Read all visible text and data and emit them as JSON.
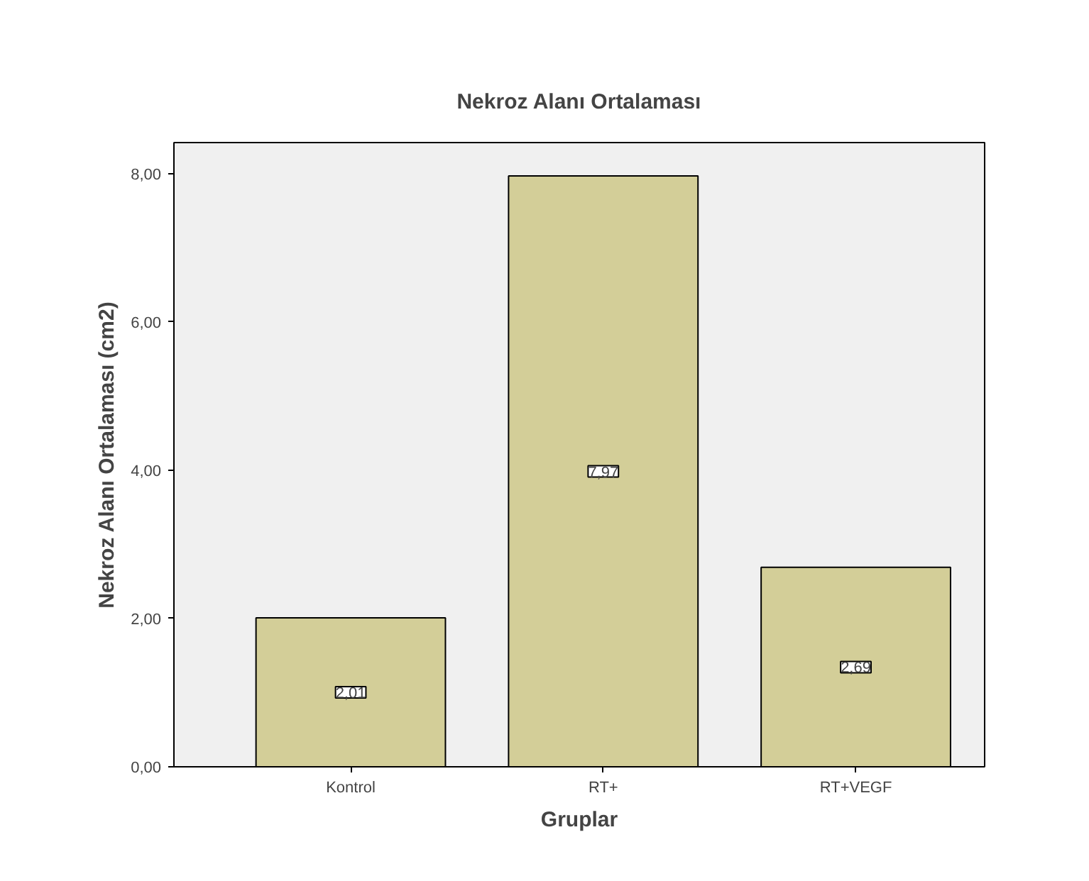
{
  "chart_data": {
    "type": "bar",
    "title": "Nekroz Alanı Ortalaması",
    "xlabel": "Gruplar",
    "ylabel": "Nekroz Alanı Ortalaması (cm2)",
    "categories": [
      "Kontrol",
      "RT+",
      "RT+VEGF"
    ],
    "values": [
      2.01,
      7.97,
      2.69
    ],
    "value_labels": [
      "2,01",
      "7,97",
      "2,69"
    ],
    "color": "#d3ce98",
    "ylim": [
      0,
      8.42
    ],
    "yticks": [
      {
        "value": 0,
        "label": "0,00"
      },
      {
        "value": 2,
        "label": "2,00"
      },
      {
        "value": 4,
        "label": "4,00"
      },
      {
        "value": 6,
        "label": "6,00"
      },
      {
        "value": 8,
        "label": "8,00"
      }
    ],
    "grid": false
  }
}
